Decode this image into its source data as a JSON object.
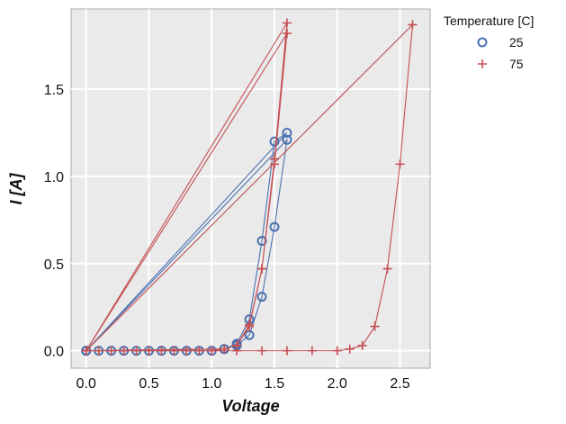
{
  "chart_data": {
    "type": "scatter",
    "xlabel": "Voltage",
    "ylabel": "I [A]",
    "xlim": [
      -0.12,
      2.74
    ],
    "ylim": [
      -0.1,
      1.96
    ],
    "xticks": [
      0.0,
      0.5,
      1.0,
      1.5,
      2.0,
      2.5
    ],
    "xtick_labels": [
      "0.0",
      "0.5",
      "1.0",
      "1.5",
      "2.0",
      "2.5"
    ],
    "yticks": [
      0.0,
      0.5,
      1.0,
      1.5
    ],
    "ytick_labels": [
      "0.0",
      "0.5",
      "1.0",
      "1.5"
    ],
    "grid": true,
    "legend": {
      "title": "Temperature [C]",
      "placement": "outside-top-right"
    },
    "series": [
      {
        "name": "25",
        "color": "#4c72b0",
        "marker": "circle",
        "connected": true,
        "x": [
          0.0,
          0.1,
          0.2,
          0.3,
          0.4,
          0.5,
          0.6,
          0.7,
          0.8,
          0.9,
          1.0,
          1.1,
          1.2,
          1.3,
          1.4,
          1.5,
          1.6,
          0.0,
          1.1,
          1.2,
          1.3,
          1.4,
          1.5,
          1.6,
          0.0
        ],
        "y": [
          0.0,
          0.0,
          0.0,
          0.0,
          0.0,
          0.0,
          0.0,
          0.0,
          0.0,
          0.0,
          0.0,
          0.01,
          0.04,
          0.18,
          0.63,
          1.2,
          1.25,
          0.0,
          0.01,
          0.03,
          0.09,
          0.31,
          0.71,
          1.21,
          0.0
        ]
      },
      {
        "name": "75",
        "color": "#c44e52",
        "marker": "plus",
        "connected": true,
        "x": [
          0.0,
          0.1,
          0.2,
          0.3,
          0.4,
          0.5,
          0.6,
          0.7,
          0.8,
          0.9,
          1.0,
          1.1,
          1.2,
          1.3,
          1.4,
          1.5,
          1.6,
          0.0,
          1.1,
          1.2,
          1.3,
          1.4,
          1.5,
          1.6,
          0.0,
          1.2,
          1.4,
          1.6,
          1.8,
          2.0,
          2.1,
          2.2,
          2.3,
          2.4,
          2.5,
          2.6,
          0.0
        ],
        "y": [
          0.0,
          0.0,
          0.0,
          0.0,
          0.0,
          0.0,
          0.0,
          0.0,
          0.0,
          0.0,
          0.0,
          0.01,
          0.03,
          0.15,
          0.47,
          1.1,
          1.88,
          0.0,
          0.01,
          0.03,
          0.14,
          0.47,
          1.07,
          1.82,
          0.0,
          0.0,
          0.0,
          0.0,
          0.0,
          0.0,
          0.01,
          0.03,
          0.14,
          0.47,
          1.07,
          1.87,
          0.0
        ]
      }
    ]
  }
}
